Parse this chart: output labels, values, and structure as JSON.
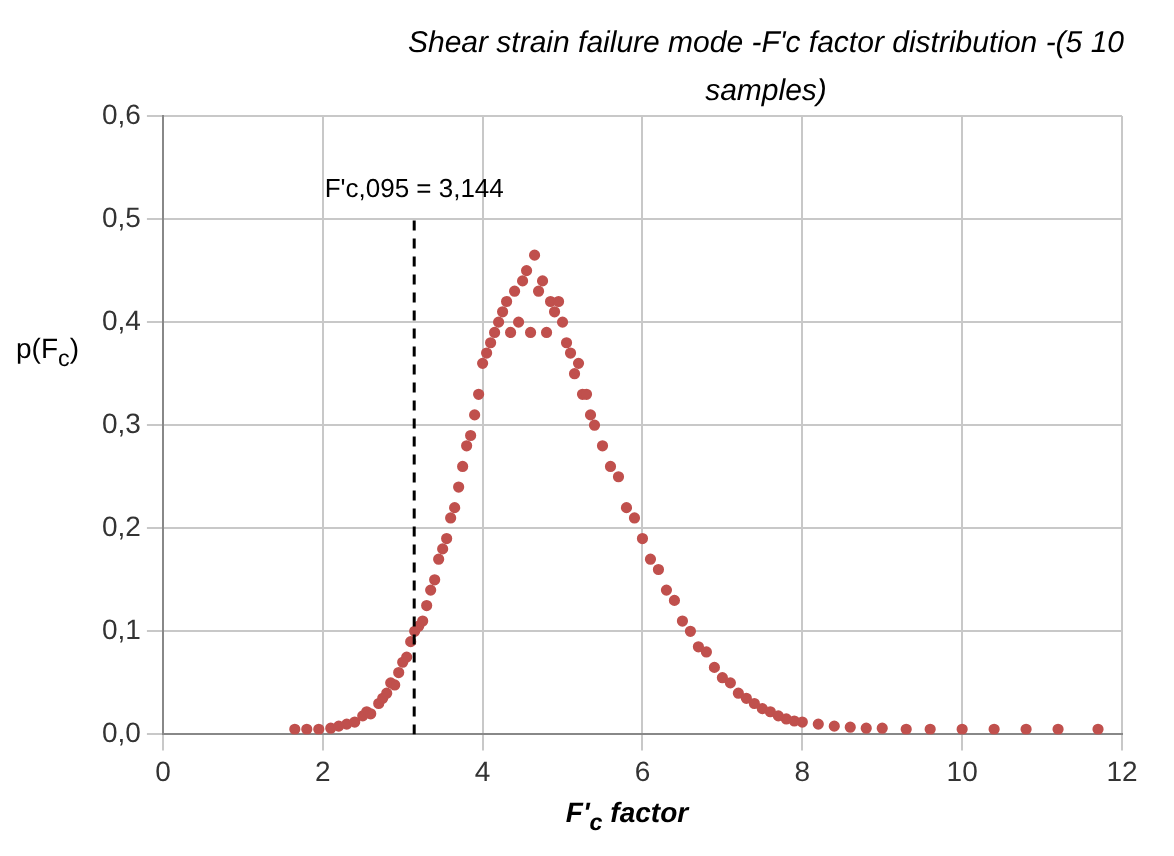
{
  "chart_data": {
    "type": "scatter",
    "title": "Shear strain failure mode -F'c factor distribution -(5 10 samples)",
    "xlabel": "F'$_{c}$ factor",
    "ylabel": "p(F$_{c}$)",
    "xlim": [
      0,
      12
    ],
    "xticks": [
      0,
      2,
      4,
      6,
      8,
      10,
      12
    ],
    "ylim": [
      0,
      0.6
    ],
    "yticks": [
      {
        "value": 0,
        "label": "0,0"
      },
      {
        "value": 0.1,
        "label": "0,1"
      },
      {
        "value": 0.2,
        "label": "0,2"
      },
      {
        "value": 0.3,
        "label": "0,3"
      },
      {
        "value": 0.4,
        "label": "0,4"
      },
      {
        "value": 0.5,
        "label": "0,5"
      },
      {
        "value": 0.6,
        "label": "0,6"
      }
    ],
    "grid": true,
    "legend": false,
    "annotations": [
      {
        "text": "F'c,095 = 3,144",
        "x": 3.144,
        "y": 0.5
      }
    ],
    "series": [
      {
        "type": "scatter",
        "color": "#c0504d",
        "marker": "circle",
        "x": [
          1.65,
          1.8,
          1.95,
          2.1,
          2.2,
          2.3,
          2.4,
          2.5,
          2.55,
          2.6,
          2.7,
          2.75,
          2.8,
          2.85,
          2.9,
          2.95,
          3.0,
          3.05,
          3.1,
          3.15,
          3.2,
          3.25,
          3.3,
          3.35,
          3.4,
          3.45,
          3.5,
          3.55,
          3.6,
          3.65,
          3.7,
          3.75,
          3.8,
          3.85,
          3.9,
          3.95,
          4.0,
          4.05,
          4.1,
          4.15,
          4.2,
          4.25,
          4.3,
          4.35,
          4.4,
          4.45,
          4.5,
          4.55,
          4.6,
          4.65,
          4.7,
          4.75,
          4.8,
          4.85,
          4.9,
          4.95,
          5.0,
          5.05,
          5.1,
          5.15,
          5.2,
          5.25,
          5.3,
          5.35,
          5.4,
          5.5,
          5.6,
          5.7,
          5.8,
          5.9,
          6.0,
          6.1,
          6.2,
          6.3,
          6.4,
          6.5,
          6.6,
          6.7,
          6.8,
          6.9,
          7.0,
          7.1,
          7.2,
          7.3,
          7.4,
          7.5,
          7.6,
          7.7,
          7.8,
          7.9,
          8.0,
          8.2,
          8.4,
          8.6,
          8.8,
          9.0,
          9.3,
          9.6,
          10.0,
          10.4,
          10.8,
          11.2,
          11.7
        ],
        "values": [
          0.005,
          0.005,
          0.005,
          0.006,
          0.008,
          0.01,
          0.012,
          0.018,
          0.022,
          0.02,
          0.03,
          0.035,
          0.04,
          0.05,
          0.048,
          0.06,
          0.07,
          0.075,
          0.09,
          0.1,
          0.105,
          0.11,
          0.125,
          0.14,
          0.15,
          0.17,
          0.18,
          0.19,
          0.21,
          0.22,
          0.24,
          0.26,
          0.28,
          0.29,
          0.31,
          0.33,
          0.36,
          0.37,
          0.38,
          0.39,
          0.4,
          0.41,
          0.42,
          0.39,
          0.43,
          0.4,
          0.44,
          0.45,
          0.39,
          0.465,
          0.43,
          0.44,
          0.39,
          0.42,
          0.41,
          0.42,
          0.4,
          0.38,
          0.37,
          0.35,
          0.36,
          0.33,
          0.33,
          0.31,
          0.3,
          0.28,
          0.26,
          0.25,
          0.22,
          0.21,
          0.19,
          0.17,
          0.16,
          0.14,
          0.13,
          0.11,
          0.1,
          0.085,
          0.08,
          0.065,
          0.055,
          0.05,
          0.04,
          0.035,
          0.03,
          0.025,
          0.022,
          0.018,
          0.015,
          0.013,
          0.012,
          0.01,
          0.008,
          0.007,
          0.006,
          0.006,
          0.005,
          0.005,
          0.005,
          0.005,
          0.005,
          0.005,
          0.005
        ]
      },
      {
        "type": "line",
        "color": "#000000",
        "line_style": "dashed",
        "marker": "none",
        "x": [
          3.144,
          3.144
        ],
        "values": [
          0,
          0.5
        ]
      }
    ]
  }
}
